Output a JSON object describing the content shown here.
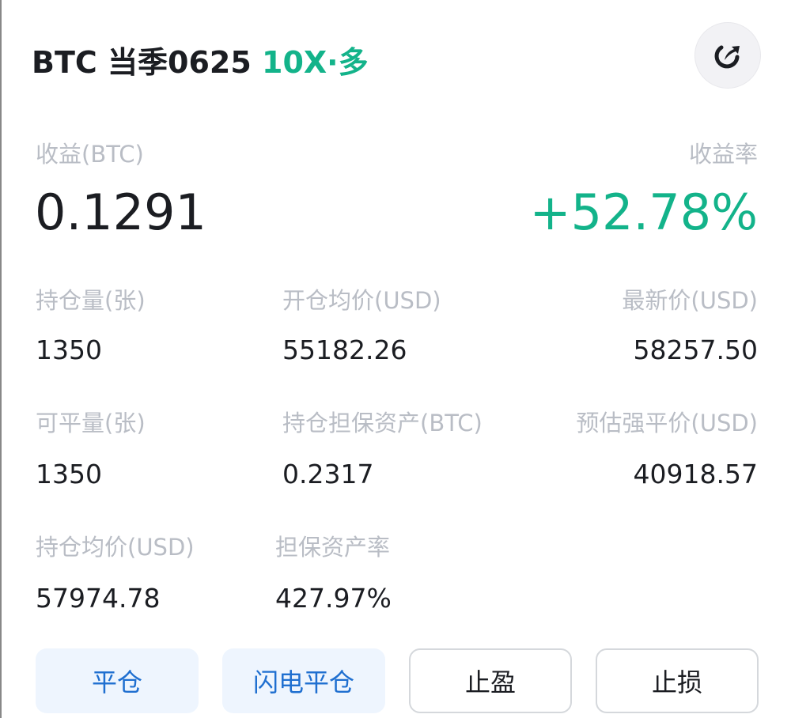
{
  "header": {
    "title": "BTC 当季0625",
    "tag": "10X·多",
    "share_icon": "share-arrow-icon"
  },
  "pnl": {
    "label": "收益(BTC)",
    "value": "0.1291",
    "rate_label": "收益率",
    "rate_value": "+52.78%"
  },
  "fields": [
    {
      "label": "持仓量(张)",
      "value": "1350"
    },
    {
      "label": "开仓均价(USD)",
      "value": "55182.26"
    },
    {
      "label": "最新价(USD)",
      "value": "58257.50"
    },
    {
      "label": "可平量(张)",
      "value": "1350"
    },
    {
      "label": "持仓担保资产(BTC)",
      "value": "0.2317"
    },
    {
      "label": "预估强平价(USD)",
      "value": "40918.57"
    },
    {
      "label": "持仓均价(USD)",
      "value": "57974.78"
    },
    {
      "label": "担保资产率",
      "value": "427.97%"
    }
  ],
  "buttons": {
    "close": "平仓",
    "flash_close": "闪电平仓",
    "take_profit": "止盈",
    "stop_loss": "止损"
  },
  "colors": {
    "green": "#13b38a",
    "blue": "#1f6fd0"
  }
}
